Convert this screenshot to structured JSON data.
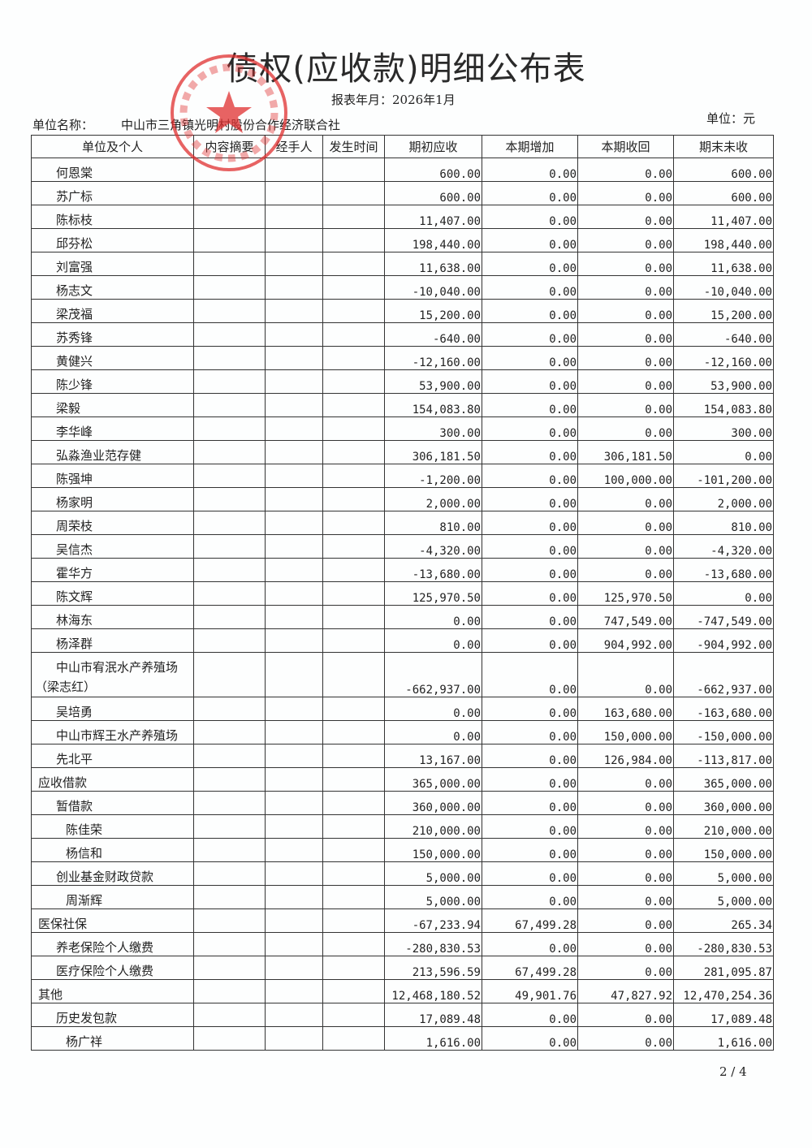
{
  "title": "债权(应收款)明细公布表",
  "period_label": "报表年月：2026年1月",
  "unit_label": "单位名称：",
  "unit_name": "中山市三角镇光明村股份合作经济联合社",
  "currency": "单位：元",
  "stamp_text": "中山市三角镇光明村股份合作经济联合社",
  "stamp_color": "#e03030",
  "headers": [
    "单位及个人",
    "内容摘要",
    "经手人",
    "发生时间",
    "期初应收",
    "本期增加",
    "本期收回",
    "期末未收"
  ],
  "rows": [
    {
      "name": "何恩棠",
      "level": 1,
      "v": [
        "600.00",
        "0.00",
        "0.00",
        "600.00"
      ]
    },
    {
      "name": "苏广标",
      "level": 1,
      "v": [
        "600.00",
        "0.00",
        "0.00",
        "600.00"
      ]
    },
    {
      "name": "陈标枝",
      "level": 1,
      "v": [
        "11,407.00",
        "0.00",
        "0.00",
        "11,407.00"
      ]
    },
    {
      "name": "邱芬松",
      "level": 1,
      "v": [
        "198,440.00",
        "0.00",
        "0.00",
        "198,440.00"
      ]
    },
    {
      "name": "刘富强",
      "level": 1,
      "v": [
        "11,638.00",
        "0.00",
        "0.00",
        "11,638.00"
      ]
    },
    {
      "name": "杨志文",
      "level": 1,
      "v": [
        "-10,040.00",
        "0.00",
        "0.00",
        "-10,040.00"
      ]
    },
    {
      "name": "梁茂福",
      "level": 1,
      "v": [
        "15,200.00",
        "0.00",
        "0.00",
        "15,200.00"
      ]
    },
    {
      "name": "苏秀锋",
      "level": 1,
      "v": [
        "-640.00",
        "0.00",
        "0.00",
        "-640.00"
      ]
    },
    {
      "name": "黄健兴",
      "level": 1,
      "v": [
        "-12,160.00",
        "0.00",
        "0.00",
        "-12,160.00"
      ]
    },
    {
      "name": "陈少锋",
      "level": 1,
      "v": [
        "53,900.00",
        "0.00",
        "0.00",
        "53,900.00"
      ]
    },
    {
      "name": "梁毅",
      "level": 1,
      "v": [
        "154,083.80",
        "0.00",
        "0.00",
        "154,083.80"
      ]
    },
    {
      "name": "李华峰",
      "level": 1,
      "v": [
        "300.00",
        "0.00",
        "0.00",
        "300.00"
      ]
    },
    {
      "name": "弘淼渔业范存健",
      "level": 1,
      "v": [
        "306,181.50",
        "0.00",
        "306,181.50",
        "0.00"
      ]
    },
    {
      "name": "陈强坤",
      "level": 1,
      "v": [
        "-1,200.00",
        "0.00",
        "100,000.00",
        "-101,200.00"
      ]
    },
    {
      "name": "杨家明",
      "level": 1,
      "v": [
        "2,000.00",
        "0.00",
        "0.00",
        "2,000.00"
      ]
    },
    {
      "name": "周荣枝",
      "level": 1,
      "v": [
        "810.00",
        "0.00",
        "0.00",
        "810.00"
      ]
    },
    {
      "name": "吴信杰",
      "level": 1,
      "v": [
        "-4,320.00",
        "0.00",
        "0.00",
        "-4,320.00"
      ]
    },
    {
      "name": "霍华方",
      "level": 1,
      "v": [
        "-13,680.00",
        "0.00",
        "0.00",
        "-13,680.00"
      ]
    },
    {
      "name": "陈文辉",
      "level": 1,
      "v": [
        "125,970.50",
        "0.00",
        "125,970.50",
        "0.00"
      ]
    },
    {
      "name": "林海东",
      "level": 1,
      "v": [
        "0.00",
        "0.00",
        "747,549.00",
        "-747,549.00"
      ]
    },
    {
      "name": "杨泽群",
      "level": 1,
      "v": [
        "0.00",
        "0.00",
        "904,992.00",
        "-904,992.00"
      ]
    },
    {
      "name": "中山市宥泯水产养殖场（梁志红）",
      "level": 1,
      "tall": true,
      "v": [
        "-662,937.00",
        "0.00",
        "0.00",
        "-662,937.00"
      ]
    },
    {
      "name": "吴培勇",
      "level": 1,
      "v": [
        "0.00",
        "0.00",
        "163,680.00",
        "-163,680.00"
      ]
    },
    {
      "name": "中山市辉王水产养殖场",
      "level": 1,
      "v": [
        "0.00",
        "0.00",
        "150,000.00",
        "-150,000.00"
      ]
    },
    {
      "name": "先北平",
      "level": 1,
      "v": [
        "13,167.00",
        "0.00",
        "126,984.00",
        "-113,817.00"
      ]
    },
    {
      "name": "应收借款",
      "level": 0,
      "v": [
        "365,000.00",
        "0.00",
        "0.00",
        "365,000.00"
      ]
    },
    {
      "name": "暂借款",
      "level": 1,
      "v": [
        "360,000.00",
        "0.00",
        "0.00",
        "360,000.00"
      ]
    },
    {
      "name": "陈佳荣",
      "level": 2,
      "v": [
        "210,000.00",
        "0.00",
        "0.00",
        "210,000.00"
      ]
    },
    {
      "name": "杨信和",
      "level": 2,
      "v": [
        "150,000.00",
        "0.00",
        "0.00",
        "150,000.00"
      ]
    },
    {
      "name": "创业基金财政贷款",
      "level": 1,
      "v": [
        "5,000.00",
        "0.00",
        "0.00",
        "5,000.00"
      ]
    },
    {
      "name": "周渐辉",
      "level": 2,
      "v": [
        "5,000.00",
        "0.00",
        "0.00",
        "5,000.00"
      ]
    },
    {
      "name": "医保社保",
      "level": 0,
      "v": [
        "-67,233.94",
        "67,499.28",
        "0.00",
        "265.34"
      ]
    },
    {
      "name": "养老保险个人缴费",
      "level": 1,
      "v": [
        "-280,830.53",
        "0.00",
        "0.00",
        "-280,830.53"
      ]
    },
    {
      "name": "医疗保险个人缴费",
      "level": 1,
      "v": [
        "213,596.59",
        "67,499.28",
        "0.00",
        "281,095.87"
      ]
    },
    {
      "name": "其他",
      "level": 0,
      "v": [
        "12,468,180.52",
        "49,901.76",
        "47,827.92",
        "12,470,254.36"
      ]
    },
    {
      "name": "历史发包款",
      "level": 1,
      "v": [
        "17,089.48",
        "0.00",
        "0.00",
        "17,089.48"
      ]
    },
    {
      "name": "杨广祥",
      "level": 2,
      "v": [
        "1,616.00",
        "0.00",
        "0.00",
        "1,616.00"
      ]
    }
  ],
  "page_number": "2 / 4"
}
